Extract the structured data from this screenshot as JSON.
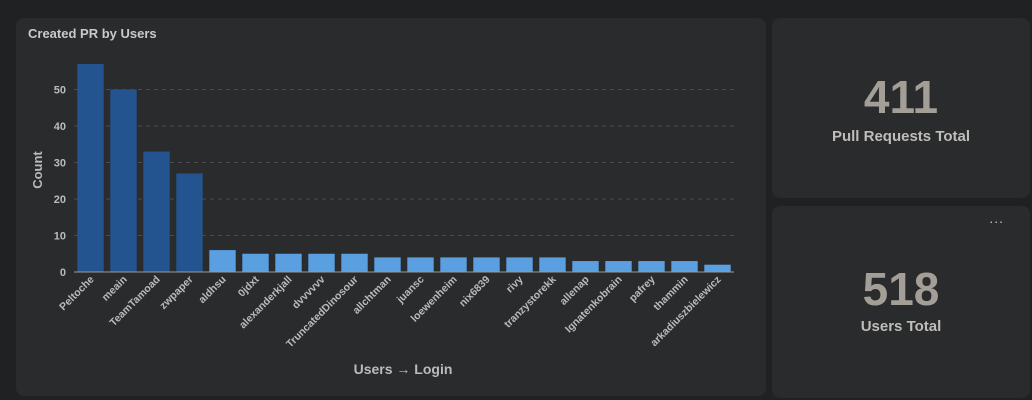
{
  "chart_card": {
    "title": "Created PR by Users"
  },
  "kpis": {
    "pull_requests": {
      "value": "411",
      "label": "Pull Requests Total"
    },
    "users": {
      "value": "518",
      "label": "Users Total",
      "menu_label": "..."
    }
  },
  "colors": {
    "highlight": "#23548f",
    "default": "#5a9fe0",
    "grid": "#4a4b4e",
    "text": "#b9bbbe"
  },
  "chart_data": {
    "type": "bar",
    "title": "Created PR by Users",
    "xlabel": "Users → Login",
    "ylabel": "Count",
    "ylim": [
      0,
      60
    ],
    "yticks": [
      0,
      10,
      20,
      30,
      40,
      50
    ],
    "grid": true,
    "categories": [
      "Peltoche",
      "meain",
      "TeamTamoad",
      "zwpaper",
      "aldhsu",
      "0jdxt",
      "alexanderkjall",
      "dvvvvvv",
      "TruncatedDinosour",
      "allchtman",
      "juansc",
      "loewenheim",
      "nix6839",
      "rivy",
      "tranzystorekk",
      "allenap",
      "Ignatenkobrain",
      "pafrey",
      "thammin",
      "arkadiuszbielewicz"
    ],
    "values": [
      57,
      50,
      33,
      27,
      6,
      5,
      5,
      5,
      5,
      4,
      4,
      4,
      4,
      4,
      4,
      3,
      3,
      3,
      3,
      2
    ],
    "highlighted_count": 4
  }
}
